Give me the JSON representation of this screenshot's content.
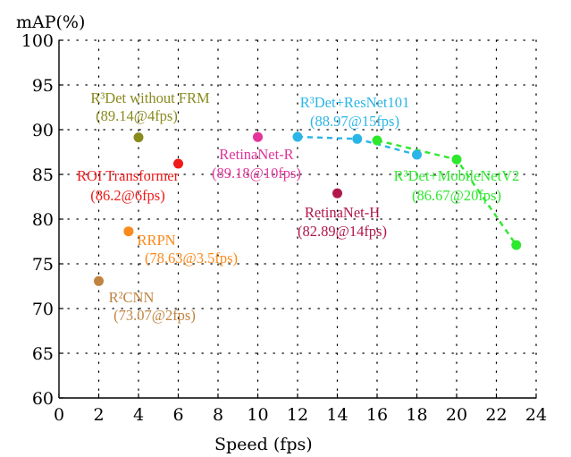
{
  "chart_data": {
    "type": "scatter",
    "xlabel": "Speed (fps)",
    "ylabel": "mAP(%)",
    "xlim": [
      0,
      24
    ],
    "ylim": [
      60,
      100
    ],
    "xticks": [
      0,
      2,
      4,
      6,
      8,
      10,
      12,
      14,
      16,
      18,
      20,
      22,
      24
    ],
    "yticks": [
      60,
      65,
      70,
      75,
      80,
      85,
      90,
      95,
      100
    ],
    "grid": true,
    "points": [
      {
        "label": "R³Det without FRM",
        "value_label": "(89.14@4fps)",
        "x": 4,
        "y": 89.14,
        "color": "#8a8a1e"
      },
      {
        "label": "ROI Transformer",
        "value_label": "(86.2@6fps)",
        "x": 6,
        "y": 86.2,
        "color": "#ef1a1a"
      },
      {
        "label": "RRPN",
        "value_label": "(78.63@3.5fps)",
        "x": 3.5,
        "y": 78.63,
        "color": "#f98a1b"
      },
      {
        "label": "R²CNN",
        "value_label": "(73.07@2fps)",
        "x": 2,
        "y": 73.07,
        "color": "#c08440"
      },
      {
        "label": "RetinaNet-R",
        "value_label": "(89.18@10fps)",
        "x": 10,
        "y": 89.18,
        "color": "#e2349a"
      },
      {
        "label": "RetinaNet-H",
        "value_label": "(82.89@14fps)",
        "x": 14,
        "y": 82.89,
        "color": "#b0174a"
      }
    ],
    "series": [
      {
        "label": "R³Det+ResNet101",
        "value_label": "(88.97@15fps)",
        "color": "#2bb5e6",
        "x": [
          12,
          15,
          18
        ],
        "y": [
          89.2,
          88.97,
          87.2
        ]
      },
      {
        "label": "R³Det+MobileNetV2",
        "value_label": "(86.67@20fps)",
        "color": "#2ee82e",
        "x": [
          16,
          20,
          23
        ],
        "y": [
          88.8,
          86.67,
          77.1
        ]
      }
    ]
  }
}
